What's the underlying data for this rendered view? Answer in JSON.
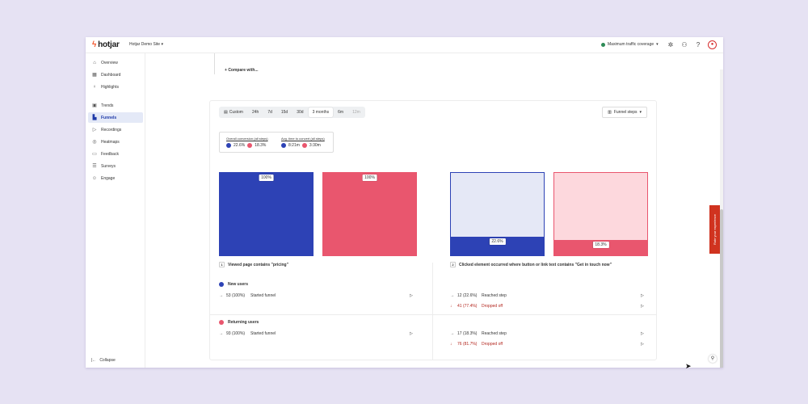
{
  "app": {
    "logo": "hotjar",
    "site_name": "Hotjar Demo Site",
    "traffic_label": "Maximum traffic coverage"
  },
  "colors": {
    "new_users": "#2d42b5",
    "new_users_light": "#e5e8f6",
    "returning_users": "#e9566e",
    "returning_users_light": "#fdd8dd",
    "brand": "#f4562c",
    "feedback_tab": "#d0331f"
  },
  "sidebar": {
    "items": [
      {
        "label": "Overview",
        "icon": "house-icon"
      },
      {
        "label": "Dashboard",
        "icon": "dashboard-icon"
      },
      {
        "label": "Highlights",
        "icon": "bulb-icon"
      },
      {
        "label": "Trends",
        "icon": "trends-icon"
      },
      {
        "label": "Funnels",
        "icon": "funnel-icon"
      },
      {
        "label": "Recordings",
        "icon": "recordings-icon"
      },
      {
        "label": "Heatmaps",
        "icon": "heatmap-icon"
      },
      {
        "label": "Feedback",
        "icon": "feedback-icon"
      },
      {
        "label": "Surveys",
        "icon": "survey-icon"
      },
      {
        "label": "Engage",
        "icon": "engage-icon"
      }
    ],
    "active": "Funnels",
    "collapse_label": "Collapse"
  },
  "main": {
    "compare_label": "Compare with...",
    "date_tabs": [
      "Custom",
      "24h",
      "7d",
      "15d",
      "30d",
      "3 months",
      "6m",
      "12m"
    ],
    "selected_tab": "3 months",
    "steps_select": "Funnel steps",
    "summary": {
      "conversion_label": "Overall conversion (all steps)",
      "conversion_new": "22.6%",
      "conversion_returning": "18.3%",
      "time_label": "Avg. time to convert (all steps)",
      "time_new": "8:21m",
      "time_returning": "3:30m"
    },
    "bars": [
      {
        "pct_label": "100%",
        "fill": 1.0
      },
      {
        "pct_label": "100%",
        "fill": 1.0
      },
      {
        "pct_label": "22.6%",
        "fill": 0.226
      },
      {
        "pct_label": "18.3%",
        "fill": 0.183
      }
    ],
    "steps": [
      {
        "number": "1",
        "title": "Viewed page contains \"pricing\""
      },
      {
        "number": "2",
        "title": "Clicked element occurred where button or link text contains \"Get in touch now\""
      }
    ],
    "segments": {
      "new_users": {
        "label": "New users",
        "step1_count": "53 (100%)",
        "step1_text": "Started funnel",
        "reached_count": "12 (22.6%)",
        "reached_text": "Reached step",
        "dropped_count": "41 (77.4%)",
        "dropped_text": "Dropped off"
      },
      "returning_users": {
        "label": "Returning users",
        "step1_count": "93 (100%)",
        "step1_text": "Started funnel",
        "reached_count": "17 (18.3%)",
        "reached_text": "Reached step",
        "dropped_count": "76 (81.7%)",
        "dropped_text": "Dropped off"
      }
    }
  },
  "feedback_tab_label": "Rate your experience"
}
